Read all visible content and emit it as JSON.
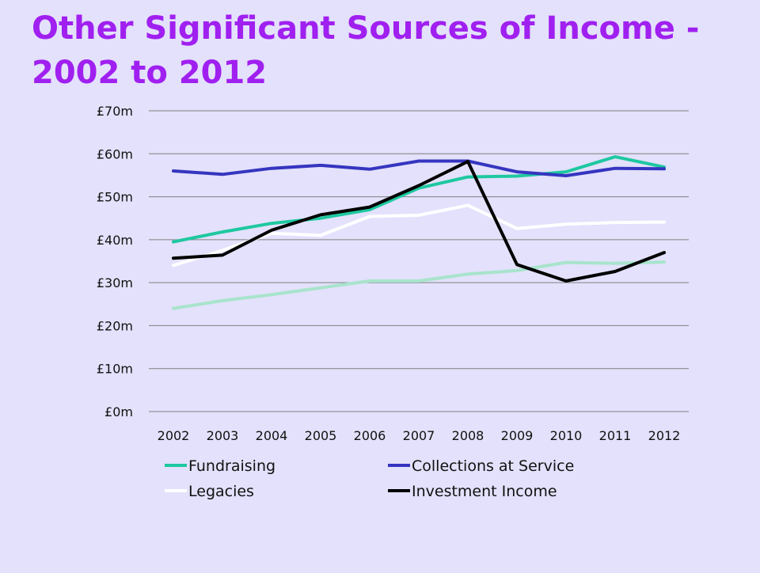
{
  "slide": {
    "title": "Other Significant Sources of Income - 2002 to 2012"
  },
  "chart_data": {
    "type": "line",
    "title": "",
    "xlabel": "",
    "ylabel": "",
    "x": [
      "2002",
      "2003",
      "2004",
      "2005",
      "2006",
      "2007",
      "2008",
      "2009",
      "2010",
      "2011",
      "2012"
    ],
    "ylim": [
      0,
      70
    ],
    "yticks": [
      0,
      10,
      20,
      30,
      40,
      50,
      60,
      70
    ],
    "ytick_labels": [
      "£0m",
      "£10m",
      "£20m",
      "£30m",
      "£40m",
      "£50m",
      "£60m",
      "£70m"
    ],
    "grid": true,
    "legend_placement": "bottom",
    "series": [
      {
        "name": "Fundraising",
        "color": "#1ec8a0",
        "values": [
          39.5,
          41.8,
          43.8,
          45.0,
          47.0,
          52.0,
          54.6,
          54.8,
          55.8,
          59.3,
          56.9
        ]
      },
      {
        "name": "Collections at Service",
        "color": "#3535c0",
        "values": [
          56.0,
          55.2,
          56.6,
          57.3,
          56.4,
          58.3,
          58.3,
          55.8,
          54.9,
          56.6,
          56.5
        ]
      },
      {
        "name": "Legacies",
        "color": "#ffffff",
        "values": [
          34.0,
          37.5,
          41.5,
          41.0,
          45.4,
          45.7,
          48.0,
          42.6,
          43.6,
          44.0,
          44.1
        ]
      },
      {
        "name": "Investment Income",
        "color": "#000000",
        "values": [
          35.7,
          36.4,
          42.2,
          45.8,
          47.6,
          52.6,
          58.2,
          34.2,
          30.4,
          32.6,
          37.0
        ]
      },
      {
        "color": "#a8e4cc",
        "values": [
          24.0,
          25.8,
          27.2,
          28.8,
          30.4,
          30.4,
          32.0,
          32.8,
          34.7,
          34.5,
          34.8
        ]
      }
    ]
  }
}
